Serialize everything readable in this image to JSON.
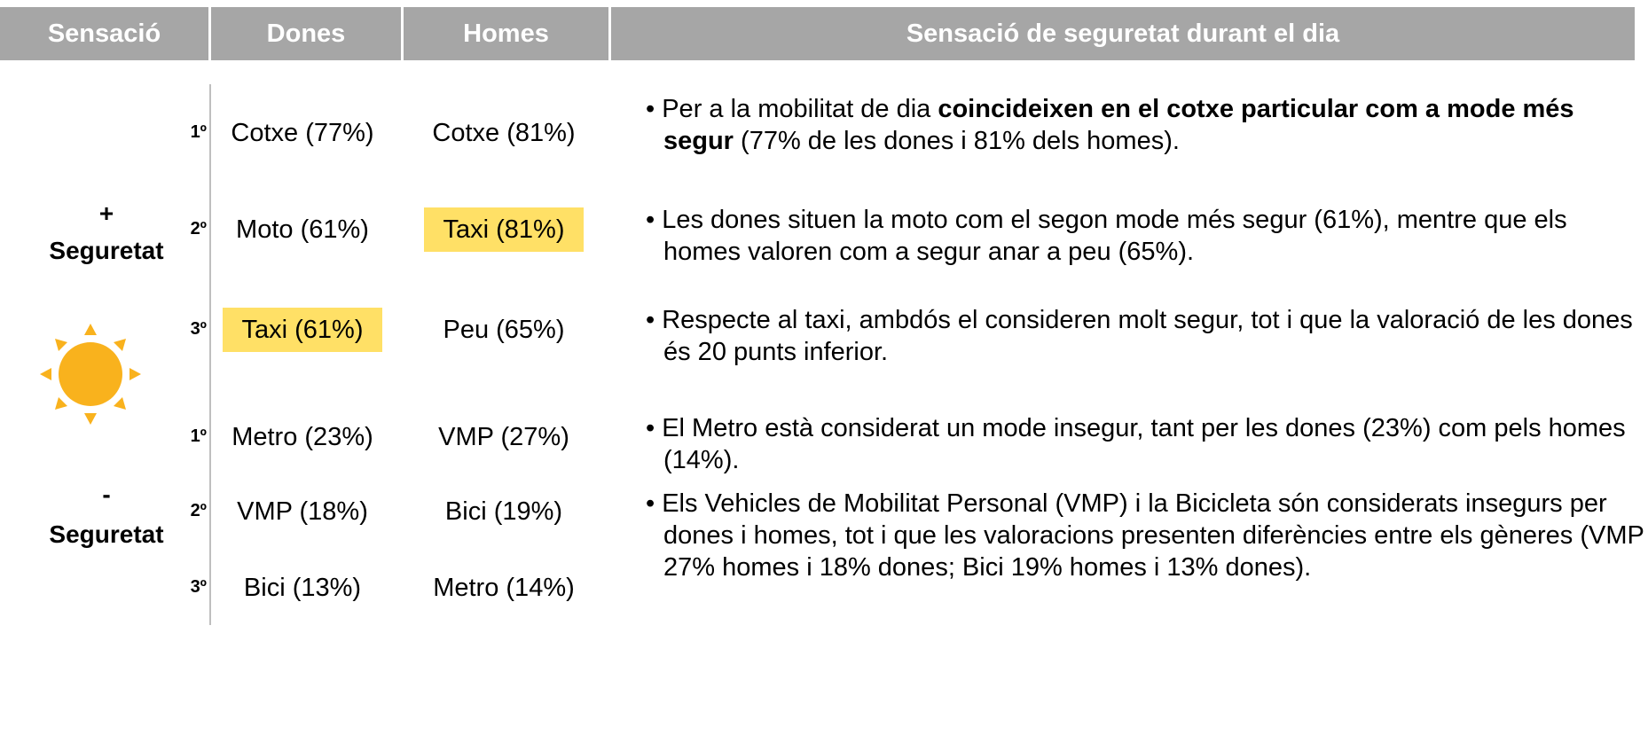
{
  "header": [
    "Sensació",
    "Dones",
    "Homes",
    "Sensació de seguretat durant el dia"
  ],
  "groups": [
    {
      "sign": "+",
      "label": "Seguretat",
      "rows": [
        {
          "rank": "1º",
          "dones": "Cotxe (77%)",
          "homes": "Cotxe (81%)"
        },
        {
          "rank": "2º",
          "dones": "Moto (61%)",
          "homes": "Taxi (81%)",
          "highlight": "homes"
        },
        {
          "rank": "3º",
          "dones": "Taxi (61%)",
          "homes": "Peu (65%)",
          "highlight": "dones"
        }
      ]
    },
    {
      "sign": "-",
      "label": "Seguretat",
      "rows": [
        {
          "rank": "1º",
          "dones": "Metro (23%)",
          "homes": "VMP (27%)"
        },
        {
          "rank": "2º",
          "dones": "VMP (18%)",
          "homes": "Bici (19%)"
        },
        {
          "rank": "3º",
          "dones": "Bici (13%)",
          "homes": "Metro (14%)"
        }
      ]
    }
  ],
  "bullets": [
    {
      "before": "Per a la mobilitat de dia ",
      "bold": "coincideixen en el cotxe particular com a mode més segur",
      "after": " (77% de les dones i 81% dels homes)."
    },
    {
      "text": "Les dones situen la moto com el segon mode més segur (61%), mentre que els homes valoren com a segur anar a peu (65%)."
    },
    {
      "text": "Respecte al taxi, ambdós el consideren molt segur, tot i que la valoració de les dones és 20 punts inferior."
    },
    {
      "text": "El Metro està considerat un mode insegur, tant per les dones (23%) com pels homes (14%)."
    },
    {
      "text": "Els Vehicles de Mobilitat Personal (VMP) i la Bicicleta són considerats insegurs per dones i homes, tot i que les valoracions presenten diferències entre els gèneres (VMP 27% homes i 18% dones; Bici 19% homes i 13% dones)."
    }
  ]
}
